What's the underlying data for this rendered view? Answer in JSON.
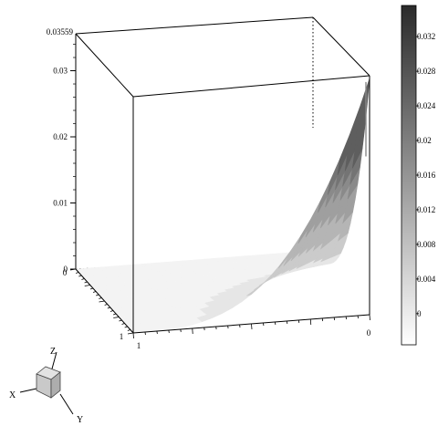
{
  "chart_data": {
    "type": "surface",
    "z_axis": {
      "max_label": "0.03559",
      "ticks": [
        "0",
        "0.01",
        "0.02",
        "0.03"
      ],
      "range": [
        0,
        0.03559
      ]
    },
    "front_axis_ticks": {
      "left": "1",
      "right": "0"
    },
    "side_axis_ticks": {
      "top": "0",
      "bottom": "1"
    },
    "colorbar": {
      "ticks": [
        "0",
        "0.004",
        "0.008",
        "0.012",
        "0.016",
        "0.02",
        "0.024",
        "0.028",
        "0.032"
      ],
      "range": [
        -0.0036,
        0.0356
      ],
      "colors": {
        "low": "#ffffff",
        "high": "#2a2a2a"
      }
    },
    "surface_bands": [
      0.004,
      0.008,
      0.012,
      0.016,
      0.02,
      0.024
    ],
    "peak_value": 0.03559
  },
  "orientation_cube": {
    "labels": {
      "z": "Z",
      "x": "X",
      "y": "Y"
    }
  }
}
